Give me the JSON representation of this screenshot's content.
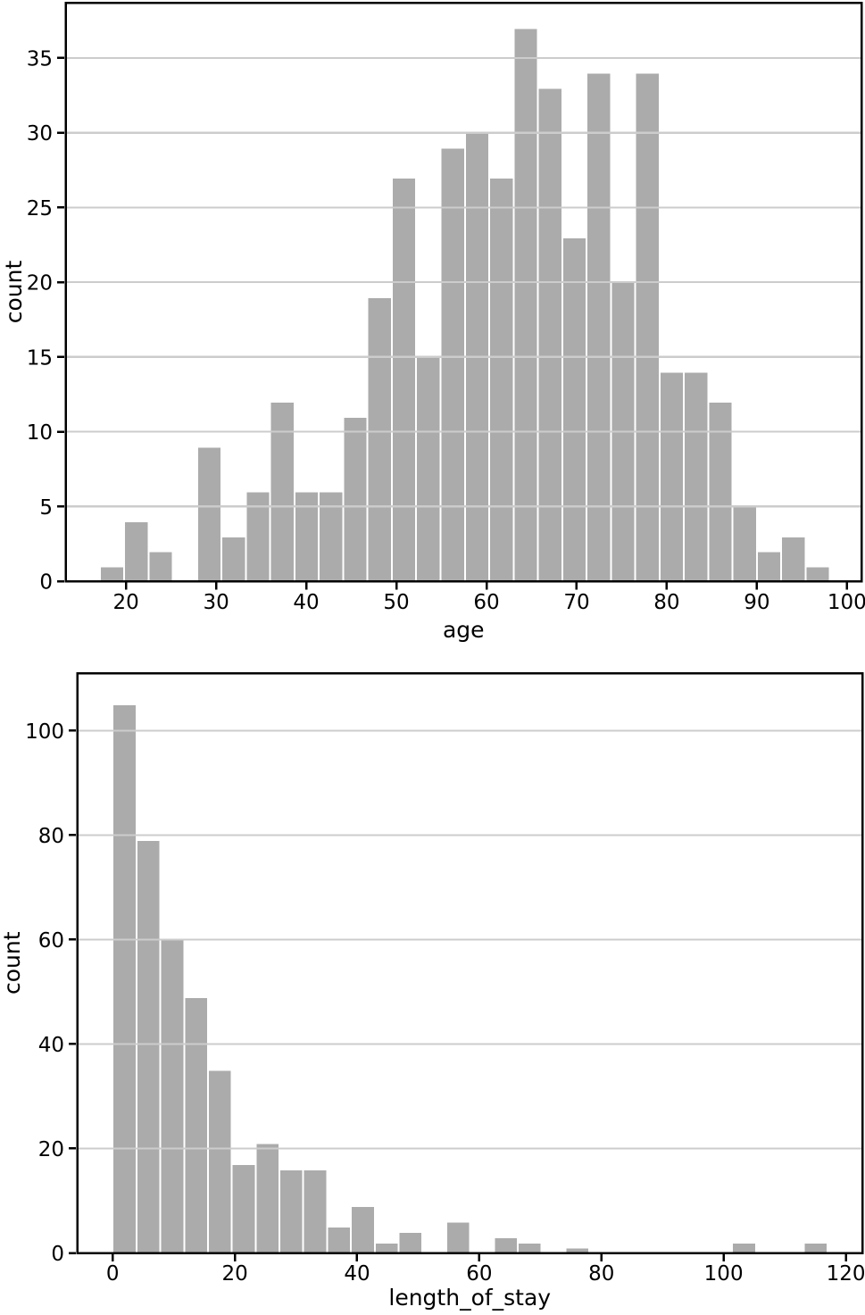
{
  "style": {
    "background": "#ffffff",
    "bar_fill": "#ababab",
    "bar_edge": "#ffffff",
    "grid_color": "#cccccc",
    "spine_color": "#000000",
    "tick_color": "#000000",
    "text_color": "#000000"
  },
  "chart_data": [
    {
      "type": "bar",
      "name": "age-histogram",
      "title": "",
      "xlabel": "age",
      "ylabel": "count",
      "bin_start": 17.1,
      "bin_width": 2.7,
      "counts": [
        1,
        4,
        2,
        0,
        9,
        3,
        6,
        12,
        6,
        6,
        11,
        19,
        27,
        15,
        29,
        30,
        27,
        37,
        33,
        23,
        34,
        20,
        34,
        14,
        14,
        12,
        5,
        2,
        3,
        1
      ],
      "x_ticks": [
        20,
        30,
        40,
        50,
        60,
        70,
        80,
        90,
        100
      ],
      "y_ticks": [
        0,
        5,
        10,
        15,
        20,
        25,
        30,
        35
      ],
      "xlim": [
        13.3,
        101.6
      ],
      "ylim": [
        0,
        38.7
      ],
      "grid": "y-only",
      "legend": "none"
    },
    {
      "type": "bar",
      "name": "length-of-stay-histogram",
      "title": "",
      "xlabel": "length_of_stay",
      "ylabel": "count",
      "bin_start": 0,
      "bin_width": 3.9,
      "counts": [
        105,
        79,
        60,
        49,
        35,
        17,
        21,
        16,
        16,
        5,
        9,
        2,
        4,
        0,
        6,
        0,
        3,
        2,
        0,
        1,
        0,
        0,
        0,
        0,
        0,
        0,
        2,
        0,
        0,
        2
      ],
      "x_ticks": [
        0,
        20,
        40,
        60,
        80,
        100,
        120
      ],
      "y_ticks": [
        0,
        20,
        40,
        60,
        80,
        100
      ],
      "xlim": [
        -5.8,
        122.7
      ],
      "ylim": [
        0,
        111
      ],
      "grid": "y-only",
      "legend": "none"
    }
  ]
}
